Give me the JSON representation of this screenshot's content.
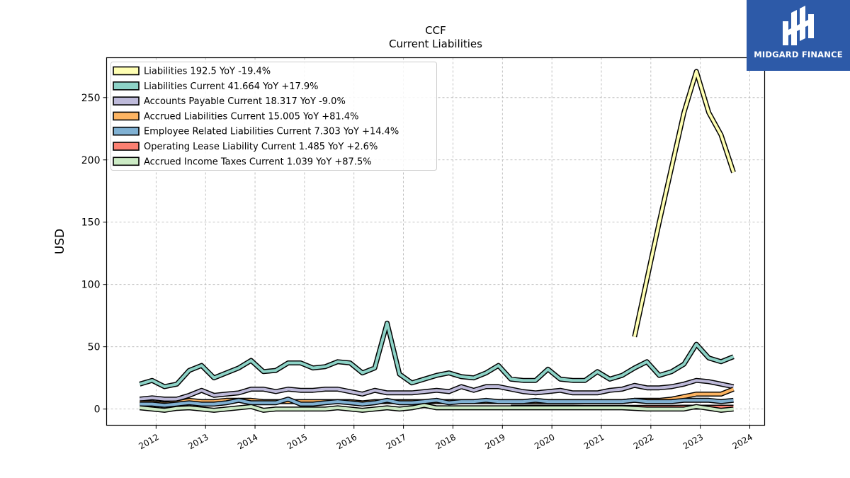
{
  "chart_data": {
    "type": "line",
    "title": "CCF",
    "subtitle": "Current  Liabilities",
    "ylabel": "USD",
    "ylim": [
      -13,
      282
    ],
    "xlim": [
      2011.0,
      2024.3
    ],
    "yticks": [
      0,
      50,
      100,
      150,
      200,
      250
    ],
    "xticks": [
      2012,
      2013,
      2014,
      2015,
      2016,
      2017,
      2018,
      2019,
      2020,
      2021,
      2022,
      2023,
      2024
    ],
    "grid": true,
    "legend_position": "top-left",
    "series": [
      {
        "name": "Liabilities",
        "legend": "Liabilities  192.5 YoY -19.4%",
        "color": "#ffffb3",
        "points": [
          [
            2021.67,
            58
          ],
          [
            2022.17,
            150
          ],
          [
            2022.67,
            238
          ],
          [
            2022.92,
            271
          ],
          [
            2023.17,
            238
          ],
          [
            2023.42,
            220
          ],
          [
            2023.67,
            190
          ]
        ]
      },
      {
        "name": "Liabilities Current",
        "legend": "Liabilities Current  41.664 YoY +17.9%",
        "color": "#8dd3c7",
        "points": [
          [
            2011.67,
            20
          ],
          [
            2011.92,
            23
          ],
          [
            2012.17,
            18
          ],
          [
            2012.42,
            20
          ],
          [
            2012.67,
            31
          ],
          [
            2012.92,
            35
          ],
          [
            2013.17,
            25
          ],
          [
            2013.42,
            29
          ],
          [
            2013.67,
            33
          ],
          [
            2013.92,
            39
          ],
          [
            2014.17,
            30
          ],
          [
            2014.42,
            31
          ],
          [
            2014.67,
            37
          ],
          [
            2014.92,
            37
          ],
          [
            2015.17,
            33
          ],
          [
            2015.42,
            34
          ],
          [
            2015.67,
            38
          ],
          [
            2015.92,
            37
          ],
          [
            2016.17,
            29
          ],
          [
            2016.42,
            33
          ],
          [
            2016.67,
            69
          ],
          [
            2016.92,
            28
          ],
          [
            2017.17,
            21
          ],
          [
            2017.42,
            24
          ],
          [
            2017.67,
            27
          ],
          [
            2017.92,
            29
          ],
          [
            2018.17,
            26
          ],
          [
            2018.42,
            25
          ],
          [
            2018.67,
            29
          ],
          [
            2018.92,
            35
          ],
          [
            2019.17,
            24
          ],
          [
            2019.42,
            23
          ],
          [
            2019.67,
            23
          ],
          [
            2019.92,
            32
          ],
          [
            2020.17,
            24
          ],
          [
            2020.42,
            23
          ],
          [
            2020.67,
            23
          ],
          [
            2020.92,
            30
          ],
          [
            2021.17,
            24
          ],
          [
            2021.42,
            27
          ],
          [
            2021.67,
            33
          ],
          [
            2021.92,
            38
          ],
          [
            2022.17,
            27
          ],
          [
            2022.42,
            30
          ],
          [
            2022.67,
            36
          ],
          [
            2022.92,
            52
          ],
          [
            2023.17,
            41
          ],
          [
            2023.42,
            38
          ],
          [
            2023.67,
            42
          ]
        ]
      },
      {
        "name": "Accounts Payable Current",
        "legend": "Accounts Payable Current  18.317 YoY -9.0%",
        "color": "#bebada",
        "points": [
          [
            2011.67,
            8
          ],
          [
            2011.92,
            9
          ],
          [
            2012.17,
            8
          ],
          [
            2012.42,
            8
          ],
          [
            2012.67,
            11
          ],
          [
            2012.92,
            15
          ],
          [
            2013.17,
            11
          ],
          [
            2013.42,
            12
          ],
          [
            2013.67,
            13
          ],
          [
            2013.92,
            16
          ],
          [
            2014.17,
            16
          ],
          [
            2014.42,
            14
          ],
          [
            2014.67,
            16
          ],
          [
            2014.92,
            15
          ],
          [
            2015.17,
            15
          ],
          [
            2015.42,
            16
          ],
          [
            2015.67,
            16
          ],
          [
            2015.92,
            14
          ],
          [
            2016.17,
            12
          ],
          [
            2016.42,
            15
          ],
          [
            2016.67,
            13
          ],
          [
            2016.92,
            13
          ],
          [
            2017.17,
            13
          ],
          [
            2017.42,
            14
          ],
          [
            2017.67,
            15
          ],
          [
            2017.92,
            14
          ],
          [
            2018.17,
            18
          ],
          [
            2018.42,
            15
          ],
          [
            2018.67,
            18
          ],
          [
            2018.92,
            18
          ],
          [
            2019.17,
            16
          ],
          [
            2019.42,
            14
          ],
          [
            2019.67,
            13
          ],
          [
            2019.92,
            14
          ],
          [
            2020.17,
            15
          ],
          [
            2020.42,
            13
          ],
          [
            2020.67,
            13
          ],
          [
            2020.92,
            13
          ],
          [
            2021.17,
            15
          ],
          [
            2021.42,
            16
          ],
          [
            2021.67,
            19
          ],
          [
            2021.92,
            17
          ],
          [
            2022.17,
            17
          ],
          [
            2022.42,
            18
          ],
          [
            2022.67,
            20
          ],
          [
            2022.92,
            23
          ],
          [
            2023.17,
            22
          ],
          [
            2023.42,
            20
          ],
          [
            2023.67,
            18
          ]
        ]
      },
      {
        "name": "Accrued Liabilities Current",
        "legend": "Accrued Liabilities Current  15.005 YoY +81.4%",
        "color": "#fdb462",
        "points": [
          [
            2011.67,
            5
          ],
          [
            2011.92,
            5
          ],
          [
            2012.17,
            4
          ],
          [
            2012.42,
            5
          ],
          [
            2012.67,
            7
          ],
          [
            2012.92,
            6
          ],
          [
            2013.17,
            6
          ],
          [
            2013.42,
            7
          ],
          [
            2013.67,
            7
          ],
          [
            2013.92,
            7
          ],
          [
            2014.17,
            6
          ],
          [
            2014.42,
            6
          ],
          [
            2014.67,
            6
          ],
          [
            2014.92,
            6
          ],
          [
            2015.17,
            6
          ],
          [
            2015.42,
            6
          ],
          [
            2015.67,
            6
          ],
          [
            2015.92,
            6
          ],
          [
            2016.17,
            5
          ],
          [
            2016.42,
            6
          ],
          [
            2016.67,
            6
          ],
          [
            2016.92,
            6
          ],
          [
            2017.17,
            6
          ],
          [
            2017.42,
            6
          ],
          [
            2017.67,
            6
          ],
          [
            2017.92,
            6
          ],
          [
            2018.17,
            6
          ],
          [
            2018.42,
            6
          ],
          [
            2018.67,
            6
          ],
          [
            2018.92,
            6
          ],
          [
            2019.17,
            6
          ],
          [
            2019.42,
            6
          ],
          [
            2019.67,
            6
          ],
          [
            2019.92,
            6
          ],
          [
            2020.17,
            6
          ],
          [
            2020.42,
            6
          ],
          [
            2020.67,
            6
          ],
          [
            2020.92,
            6
          ],
          [
            2021.17,
            6
          ],
          [
            2021.42,
            6
          ],
          [
            2021.67,
            7
          ],
          [
            2021.92,
            7
          ],
          [
            2022.17,
            7
          ],
          [
            2022.42,
            8
          ],
          [
            2022.67,
            10
          ],
          [
            2022.92,
            12
          ],
          [
            2023.17,
            12
          ],
          [
            2023.42,
            12
          ],
          [
            2023.67,
            16
          ]
        ]
      },
      {
        "name": "Employee Related Liabilities Current",
        "legend": "Employee Related Liabilities Current  7.303 YoY +14.4%",
        "color": "#80b1d3",
        "points": [
          [
            2011.67,
            4
          ],
          [
            2011.92,
            4
          ],
          [
            2012.17,
            3
          ],
          [
            2012.42,
            4
          ],
          [
            2012.67,
            5
          ],
          [
            2012.92,
            4
          ],
          [
            2013.17,
            4
          ],
          [
            2013.42,
            5
          ],
          [
            2013.67,
            7
          ],
          [
            2013.92,
            5
          ],
          [
            2014.17,
            5
          ],
          [
            2014.42,
            5
          ],
          [
            2014.67,
            8
          ],
          [
            2014.92,
            4
          ],
          [
            2015.17,
            4
          ],
          [
            2015.42,
            5
          ],
          [
            2015.67,
            6
          ],
          [
            2015.92,
            5
          ],
          [
            2016.17,
            4
          ],
          [
            2016.42,
            5
          ],
          [
            2016.67,
            7
          ],
          [
            2016.92,
            5
          ],
          [
            2017.17,
            5
          ],
          [
            2017.42,
            6
          ],
          [
            2017.67,
            7
          ],
          [
            2017.92,
            5
          ],
          [
            2018.17,
            6
          ],
          [
            2018.42,
            6
          ],
          [
            2018.67,
            7
          ],
          [
            2018.92,
            6
          ],
          [
            2019.17,
            6
          ],
          [
            2019.42,
            6
          ],
          [
            2019.67,
            7
          ],
          [
            2019.92,
            6
          ],
          [
            2020.17,
            6
          ],
          [
            2020.42,
            6
          ],
          [
            2020.67,
            6
          ],
          [
            2020.92,
            6
          ],
          [
            2021.17,
            6
          ],
          [
            2021.42,
            6
          ],
          [
            2021.67,
            7
          ],
          [
            2021.92,
            6
          ],
          [
            2022.17,
            6
          ],
          [
            2022.42,
            6
          ],
          [
            2022.67,
            7
          ],
          [
            2022.92,
            7
          ],
          [
            2023.17,
            7
          ],
          [
            2023.42,
            6
          ],
          [
            2023.67,
            7
          ]
        ]
      },
      {
        "name": "Operating Lease Liability Current",
        "legend": "Operating Lease Liability Current  1.485 YoY +2.6%",
        "color": "#fb8072",
        "points": [
          [
            2019.17,
            1.5
          ],
          [
            2019.42,
            1.5
          ],
          [
            2019.67,
            1.5
          ],
          [
            2019.92,
            1.5
          ],
          [
            2020.17,
            1.5
          ],
          [
            2020.42,
            1.5
          ],
          [
            2020.67,
            1.4
          ],
          [
            2020.92,
            1.4
          ],
          [
            2021.17,
            1.4
          ],
          [
            2021.42,
            1.4
          ],
          [
            2021.67,
            1.4
          ],
          [
            2021.92,
            1.4
          ],
          [
            2022.17,
            1.4
          ],
          [
            2022.42,
            1.4
          ],
          [
            2022.67,
            1.5
          ],
          [
            2022.92,
            1.5
          ],
          [
            2023.17,
            1.5
          ],
          [
            2023.42,
            1.5
          ],
          [
            2023.67,
            1.5
          ]
        ]
      },
      {
        "name": "Accrued Income Taxes Current",
        "legend": "Accrued Income Taxes Current  1.039 YoY +87.5%",
        "color": "#ccebc5",
        "points": [
          [
            2011.67,
            1
          ],
          [
            2011.92,
            0
          ],
          [
            2012.17,
            -1
          ],
          [
            2012.42,
            0.5
          ],
          [
            2012.67,
            1
          ],
          [
            2012.92,
            0
          ],
          [
            2013.17,
            -1
          ],
          [
            2013.42,
            0
          ],
          [
            2013.67,
            1
          ],
          [
            2013.92,
            2
          ],
          [
            2014.17,
            -1
          ],
          [
            2014.42,
            0
          ],
          [
            2014.67,
            0
          ],
          [
            2014.92,
            0
          ],
          [
            2015.17,
            0
          ],
          [
            2015.42,
            0
          ],
          [
            2015.67,
            1
          ],
          [
            2015.92,
            0
          ],
          [
            2016.17,
            -1
          ],
          [
            2016.42,
            0
          ],
          [
            2016.67,
            1
          ],
          [
            2016.92,
            0
          ],
          [
            2017.17,
            1
          ],
          [
            2017.42,
            3
          ],
          [
            2017.67,
            1
          ],
          [
            2017.92,
            1
          ],
          [
            2018.17,
            1
          ],
          [
            2018.42,
            1
          ],
          [
            2018.67,
            1
          ],
          [
            2018.92,
            1
          ],
          [
            2019.17,
            1
          ],
          [
            2019.42,
            1
          ],
          [
            2019.67,
            1
          ],
          [
            2019.92,
            1
          ],
          [
            2020.17,
            1
          ],
          [
            2020.42,
            1
          ],
          [
            2020.67,
            1
          ],
          [
            2020.92,
            1
          ],
          [
            2021.17,
            1
          ],
          [
            2021.42,
            1
          ],
          [
            2021.67,
            0.5
          ],
          [
            2021.92,
            0
          ],
          [
            2022.17,
            0
          ],
          [
            2022.42,
            0
          ],
          [
            2022.67,
            0
          ],
          [
            2022.92,
            2
          ],
          [
            2023.17,
            0.5
          ],
          [
            2023.42,
            -1
          ],
          [
            2023.67,
            0
          ]
        ]
      }
    ]
  },
  "logo": {
    "text": "MIDGARD FINANCE",
    "color": "#2d5aa8"
  }
}
